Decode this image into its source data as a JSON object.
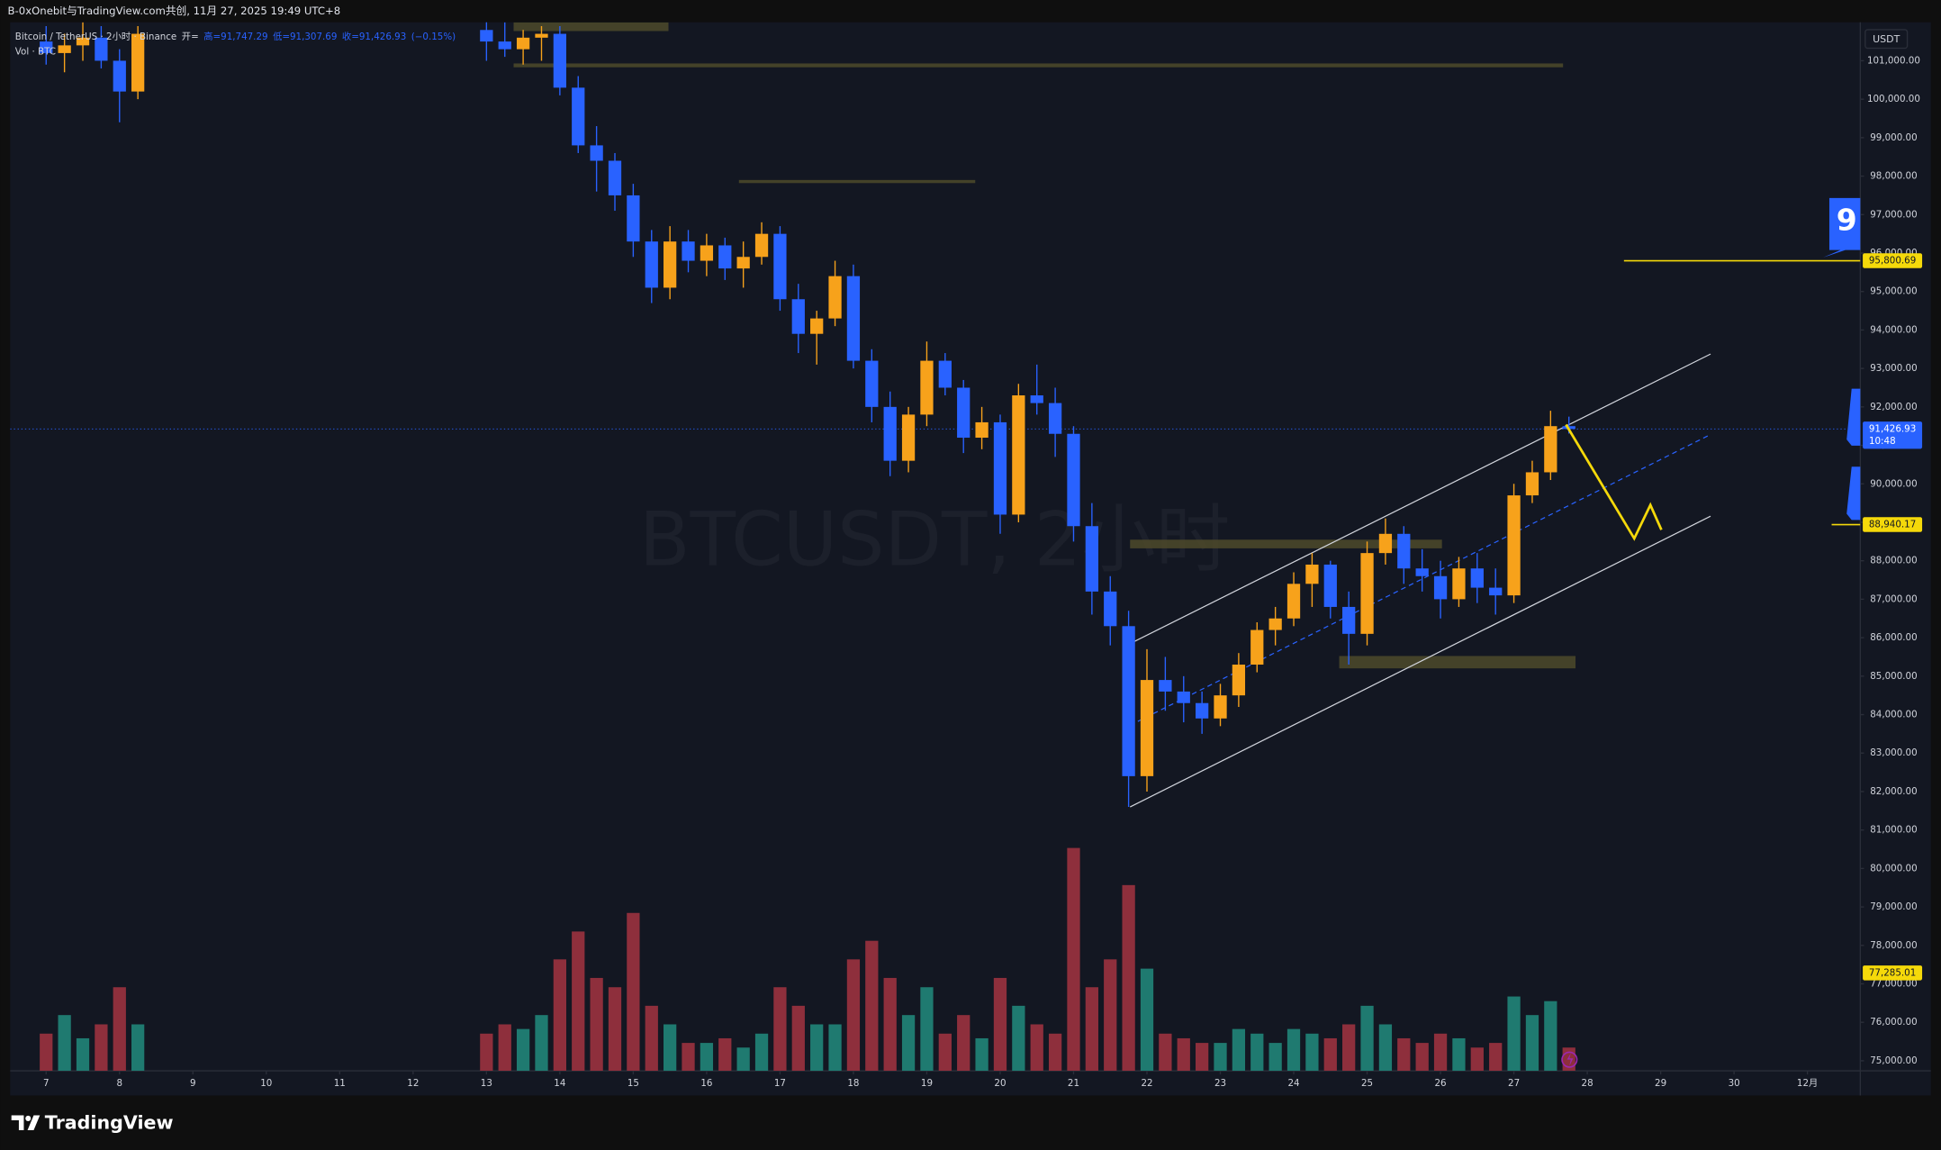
{
  "header": "B-0xOnebit与TradingView.com共创, 11月 27, 2025 19:49 UTC+8",
  "legend": {
    "symbol": "Bitcoin / TetherUS · 2小时 · Binance",
    "open": "开=",
    "high": "高=91,747.29",
    "low": "低=91,307.69",
    "close": "收=91,426.93",
    "change": "(−0.15%)",
    "volume": "Vol · BTC"
  },
  "watermark": "BTCUSDT, 2小时",
  "footer": "TradingView",
  "badge": "9",
  "chart_data": {
    "type": "candlestick",
    "y_axis_label": "USDT",
    "up_color": "#f7a21b",
    "down_color": "#2962ff",
    "volume_up_color": "#1f7a70",
    "volume_down_color": "#8e2f3c",
    "grid": false,
    "xlim": [
      6.51,
      31.72
    ],
    "ylim": [
      74740,
      102000
    ],
    "vlim": [
      0,
      40000
    ],
    "xticks": [
      7,
      8,
      9,
      10,
      11,
      12,
      13,
      14,
      15,
      16,
      17,
      18,
      19,
      20,
      21,
      22,
      23,
      24,
      25,
      26,
      27,
      28,
      29,
      30,
      {
        "value": 31,
        "label": "12月"
      }
    ],
    "yticks": [
      {
        "value": 75000,
        "label": "75,000.00"
      },
      {
        "value": 76000,
        "label": "76,000.00"
      },
      {
        "value": 77000,
        "label": "77,000.00"
      },
      {
        "value": 78000,
        "label": "78,000.00"
      },
      {
        "value": 79000,
        "label": "79,000.00"
      },
      {
        "value": 80000,
        "label": "80,000.00"
      },
      {
        "value": 81000,
        "label": "81,000.00"
      },
      {
        "value": 82000,
        "label": "82,000.00"
      },
      {
        "value": 83000,
        "label": "83,000.00"
      },
      {
        "value": 84000,
        "label": "84,000.00"
      },
      {
        "value": 85000,
        "label": "85,000.00"
      },
      {
        "value": 86000,
        "label": "86,000.00"
      },
      {
        "value": 87000,
        "label": "87,000.00"
      },
      {
        "value": 88000,
        "label": "88,000.00"
      },
      {
        "value": 89000,
        "label": "89,000.00"
      },
      {
        "value": 90000,
        "label": "90,000.00"
      },
      {
        "value": 91000,
        "label": "91,000.00"
      },
      {
        "value": 92000,
        "label": "92,000.00"
      },
      {
        "value": 93000,
        "label": "93,000.00"
      },
      {
        "value": 94000,
        "label": "94,000.00"
      },
      {
        "value": 95000,
        "label": "95,000.00"
      },
      {
        "value": 96000,
        "label": "96,000.00"
      },
      {
        "value": 97000,
        "label": "97,000.00"
      },
      {
        "value": 98000,
        "label": "98,000.00"
      },
      {
        "value": 99000,
        "label": "99,000.00"
      },
      {
        "value": 100000,
        "label": "100,000.00"
      },
      {
        "value": 101000,
        "label": "101,000.00"
      }
    ],
    "x": [
      7,
      7.25,
      7.5,
      7.75,
      8,
      8.25,
      13,
      13.25,
      13.5,
      13.75,
      14,
      14.25,
      14.5,
      14.75,
      15,
      15.25,
      15.5,
      15.75,
      16,
      16.25,
      16.5,
      16.75,
      17,
      17.25,
      17.5,
      17.75,
      18,
      18.25,
      18.5,
      18.75,
      19,
      19.25,
      19.5,
      19.75,
      20,
      20.25,
      20.5,
      20.75,
      21,
      21.25,
      21.5,
      21.75,
      22,
      22.25,
      22.5,
      22.75,
      23,
      23.25,
      23.5,
      23.75,
      24,
      24.25,
      24.5,
      24.75,
      25,
      25.25,
      25.5,
      25.75,
      26,
      26.25,
      26.5,
      26.75,
      27,
      27.25,
      27.5,
      27.75
    ],
    "open": [
      101500,
      101200,
      101400,
      101600,
      101000,
      100200,
      101800,
      101500,
      101300,
      101600,
      101700,
      100300,
      98800,
      98400,
      97500,
      96300,
      95100,
      96300,
      95800,
      96200,
      95600,
      95900,
      96500,
      94800,
      93900,
      94300,
      95400,
      93200,
      92000,
      90600,
      91800,
      93200,
      92500,
      91200,
      91600,
      89200,
      92300,
      92100,
      91300,
      88900,
      87200,
      86300,
      82400,
      84900,
      84600,
      84300,
      83900,
      84500,
      85300,
      86200,
      86500,
      87400,
      87900,
      86800,
      86100,
      88200,
      88700,
      87800,
      87600,
      87000,
      87800,
      87300,
      87100,
      89700,
      90300,
      91500
    ],
    "high": [
      101900,
      101700,
      102000,
      101900,
      101300,
      101900,
      102200,
      102000,
      101800,
      101900,
      101900,
      100600,
      99300,
      98600,
      97800,
      96600,
      96700,
      96600,
      96500,
      96400,
      96300,
      96800,
      96700,
      95200,
      94500,
      95800,
      95700,
      93500,
      92400,
      92000,
      93700,
      93400,
      92700,
      92000,
      91800,
      92600,
      93100,
      92500,
      91500,
      89500,
      87600,
      86700,
      85700,
      85500,
      85000,
      84600,
      84800,
      85600,
      86400,
      86800,
      87700,
      88200,
      88000,
      87200,
      88500,
      89100,
      88900,
      88300,
      88000,
      88100,
      88200,
      87800,
      90000,
      90600,
      91900,
      91747.29
    ],
    "low": [
      100900,
      100700,
      101000,
      100800,
      99400,
      100000,
      101000,
      101100,
      100900,
      101000,
      100100,
      98600,
      97600,
      97100,
      95900,
      94700,
      94800,
      95500,
      95400,
      95300,
      95100,
      95700,
      94500,
      93400,
      93100,
      94100,
      93000,
      91600,
      90200,
      90300,
      91500,
      92300,
      90800,
      90900,
      88700,
      89000,
      91800,
      90700,
      88500,
      86600,
      85800,
      81600,
      82000,
      84100,
      83800,
      83500,
      83700,
      84200,
      85100,
      85800,
      86300,
      86800,
      86500,
      85300,
      85800,
      87900,
      87400,
      87200,
      86500,
      86800,
      86900,
      86600,
      86900,
      89500,
      90100,
      91307.69
    ],
    "close": [
      101200,
      101400,
      101600,
      101000,
      100200,
      101700,
      101500,
      101300,
      101600,
      101700,
      100300,
      98800,
      98400,
      97500,
      96300,
      95100,
      96300,
      95800,
      96200,
      95600,
      95900,
      96500,
      94800,
      93900,
      94300,
      95400,
      93200,
      92000,
      90600,
      91800,
      93200,
      92500,
      91200,
      91600,
      89200,
      92300,
      92100,
      91300,
      88900,
      87200,
      86300,
      82400,
      84900,
      84600,
      84300,
      83900,
      84500,
      85300,
      86200,
      86500,
      87400,
      87900,
      86800,
      86100,
      88200,
      88700,
      87800,
      87600,
      87000,
      87800,
      87300,
      87100,
      89700,
      90300,
      91500,
      91426.93
    ],
    "volume": [
      4000,
      6000,
      3500,
      5000,
      9000,
      5000,
      4000,
      5000,
      4500,
      6000,
      12000,
      15000,
      10000,
      9000,
      17000,
      7000,
      5000,
      3000,
      3000,
      3500,
      2500,
      4000,
      9000,
      7000,
      5000,
      5000,
      12000,
      14000,
      10000,
      6000,
      9000,
      4000,
      6000,
      3500,
      10000,
      7000,
      5000,
      4000,
      24000,
      9000,
      12000,
      20000,
      11000,
      4000,
      3500,
      3000,
      3000,
      4500,
      4000,
      3000,
      4500,
      4000,
      3500,
      5000,
      7000,
      5000,
      3500,
      3000,
      4000,
      3500,
      2500,
      3000,
      8000,
      6000,
      7500,
      2500
    ],
    "price_tags": [
      {
        "value": 95800.69,
        "label": "95,800.69",
        "color": "#f5d90a"
      },
      {
        "value": 91426.93,
        "label": "91,426.93",
        "sub": "10:48",
        "color": "#2962ff"
      },
      {
        "value": 88940.17,
        "label": "88,940.17",
        "color": "#f5d90a"
      },
      {
        "value": 77285.01,
        "label": "77,285.01",
        "color": "#f5d90a"
      }
    ],
    "drawings": {
      "zone_color": "#4d4a2a",
      "zones": [
        {
          "x": [
            13.37,
            15.48
          ],
          "y": [
            101997,
            101772
          ]
        },
        {
          "x": [
            13.37,
            27.67
          ],
          "y": [
            100930,
            100830
          ]
        },
        {
          "x": [
            16.44,
            19.66
          ],
          "y": [
            97900,
            97830
          ]
        },
        {
          "x": [
            21.77,
            26.02
          ],
          "y": [
            88548,
            88323
          ]
        },
        {
          "x": [
            24.62,
            27.84
          ],
          "y": [
            85524,
            85202
          ]
        }
      ],
      "channel_color": "#d1d4dc",
      "channel_mid_color": "#2962ff",
      "channel_upper": {
        "x": [
          21.77,
          29.68
        ],
        "y": [
          85846,
          93375
        ]
      },
      "channel_lower": {
        "x": [
          21.77,
          29.68
        ],
        "y": [
          81599,
          89160
        ]
      },
      "channel_middle": {
        "x": [
          21.77,
          29.68
        ],
        "y": [
          83722,
          91283
        ]
      },
      "projection_color": "#f5d90a",
      "projection": {
        "x": [
          27.71,
          28.64,
          28.86,
          29.01
        ],
        "y": [
          91540,
          88580,
          89449,
          88806
        ]
      },
      "hlines": [
        {
          "x": 28.5,
          "y": 95800.69
        },
        {
          "x": 31.33,
          "y": 88940.17
        }
      ]
    }
  }
}
